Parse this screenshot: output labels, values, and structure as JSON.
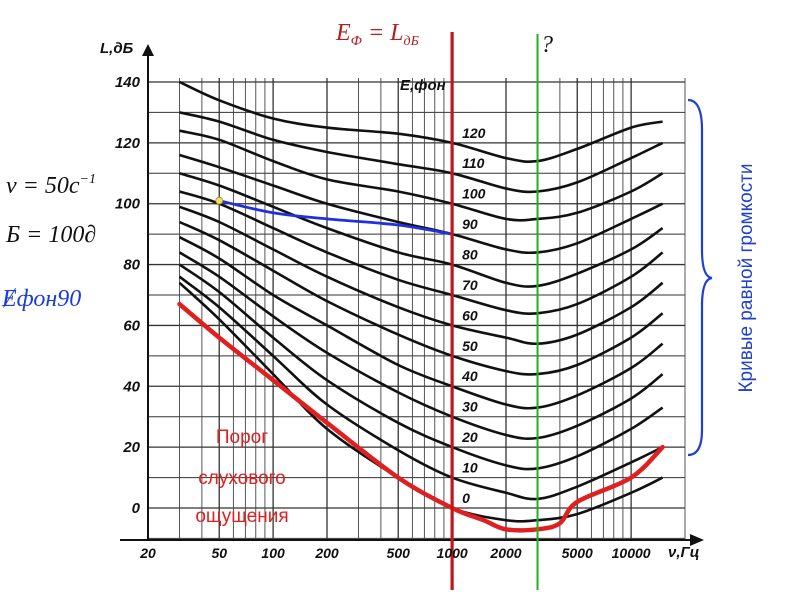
{
  "chart_data": {
    "type": "line",
    "xscale": "log",
    "xlim": [
      20,
      20000
    ],
    "ylim": [
      -10,
      145
    ],
    "y_axis_title": "L,дБ",
    "x_axis_title": "ν,Гц",
    "curve_group_title": "E,фон",
    "y_ticks": [
      {
        "value": 140,
        "label": "140"
      },
      {
        "value": 120,
        "label": "120"
      },
      {
        "value": 100,
        "label": "100"
      },
      {
        "value": 80,
        "label": "80"
      },
      {
        "value": 60,
        "label": "60"
      },
      {
        "value": 40,
        "label": "40"
      },
      {
        "value": 20,
        "label": "20"
      },
      {
        "value": 0,
        "label": "0"
      }
    ],
    "x_ticks": [
      {
        "value": 20,
        "label": "20"
      },
      {
        "value": 50,
        "label": "50"
      },
      {
        "value": 100,
        "label": "100"
      },
      {
        "value": 200,
        "label": "200"
      },
      {
        "value": 500,
        "label": "500"
      },
      {
        "value": 1000,
        "label": "1000"
      },
      {
        "value": 2000,
        "label": "2000"
      },
      {
        "value": 5000,
        "label": "5000"
      },
      {
        "value": 10000,
        "label": "10000"
      }
    ],
    "x_minor": [
      30,
      40,
      60,
      70,
      80,
      90,
      300,
      400,
      600,
      700,
      800,
      900,
      3000,
      4000,
      6000,
      7000,
      8000,
      9000,
      20000
    ],
    "freqs": [
      30,
      50,
      100,
      200,
      500,
      1000,
      2000,
      3000,
      5000,
      10000,
      15000
    ],
    "curves": [
      {
        "phon": "120",
        "values": [
          140,
          134,
          128,
          125,
          123,
          120,
          115,
          114,
          118,
          125,
          127
        ]
      },
      {
        "phon": "110",
        "values": [
          130,
          127,
          121,
          117,
          113,
          110,
          105,
          104,
          107,
          115,
          120
        ]
      },
      {
        "phon": "100",
        "values": [
          124,
          121,
          114,
          108,
          104,
          100,
          95,
          95,
          97,
          104,
          110
        ]
      },
      {
        "phon": "90",
        "values": [
          116,
          112,
          106,
          100,
          94,
          90,
          85,
          84,
          87,
          95,
          100
        ]
      },
      {
        "phon": "80",
        "values": [
          110,
          106,
          99,
          92,
          84,
          80,
          74,
          73,
          77,
          85,
          92
        ]
      },
      {
        "phon": "70",
        "values": [
          104,
          100,
          92,
          84,
          75,
          70,
          65,
          64,
          67,
          76,
          84
        ]
      },
      {
        "phon": "60",
        "values": [
          99,
          94,
          85,
          76,
          66,
          60,
          56,
          54,
          57,
          66,
          74
        ]
      },
      {
        "phon": "50",
        "values": [
          94,
          88,
          78,
          68,
          57,
          50,
          45,
          44,
          47,
          56,
          64
        ]
      },
      {
        "phon": "40",
        "values": [
          89,
          82,
          70,
          60,
          47,
          40,
          34,
          33,
          37,
          46,
          54
        ]
      },
      {
        "phon": "30",
        "values": [
          84,
          76,
          63,
          51,
          38,
          30,
          24,
          23,
          27,
          36,
          44
        ]
      },
      {
        "phon": "20",
        "values": [
          80,
          71,
          56,
          42,
          28,
          20,
          14,
          13,
          17,
          26,
          33
        ]
      },
      {
        "phon": "10",
        "values": [
          76,
          66,
          50,
          34,
          19,
          10,
          5,
          3,
          7,
          15,
          20
        ]
      },
      {
        "phon": "0",
        "values": [
          74,
          62,
          44,
          26,
          10,
          0,
          -4,
          -4,
          -2,
          5,
          10
        ]
      }
    ],
    "threshold": {
      "name": "Порог слухового ощущения",
      "color": "#e02020",
      "x": [
        30,
        50,
        100,
        200,
        500,
        1000,
        1500,
        2000,
        3000,
        4000,
        5000,
        10000,
        15000
      ],
      "y": [
        67,
        56,
        42,
        28,
        10,
        0,
        -4,
        -7,
        -7,
        -5,
        2,
        10,
        20
      ]
    },
    "blue_curve": {
      "color": "#2030e0",
      "x": [
        50,
        100,
        200,
        500,
        1000
      ],
      "y": [
        101,
        97,
        95,
        93,
        90
      ]
    },
    "blue_point": {
      "x": 50,
      "y": 101,
      "color": "#f0e060"
    },
    "vline_red": {
      "x": 1000,
      "color": "#c01818"
    },
    "vline_green": {
      "x": 3000,
      "color": "#20b020"
    }
  },
  "annotations": {
    "formula_top": {
      "E": "E",
      "sub_phi": "Ф",
      "eq": " = L",
      "sub_db": "дБ"
    },
    "question": "?",
    "nu_formula": {
      "main": "ν = 50c",
      "sup": "−1"
    },
    "b_formula": "Б = 100∂",
    "phon_label": "Ɇфон90",
    "threshold_lines": [
      "Порог",
      "слухового",
      "ощущения"
    ],
    "side_label": "Кривые равной громкости",
    "brace_color": "#2040d0"
  }
}
